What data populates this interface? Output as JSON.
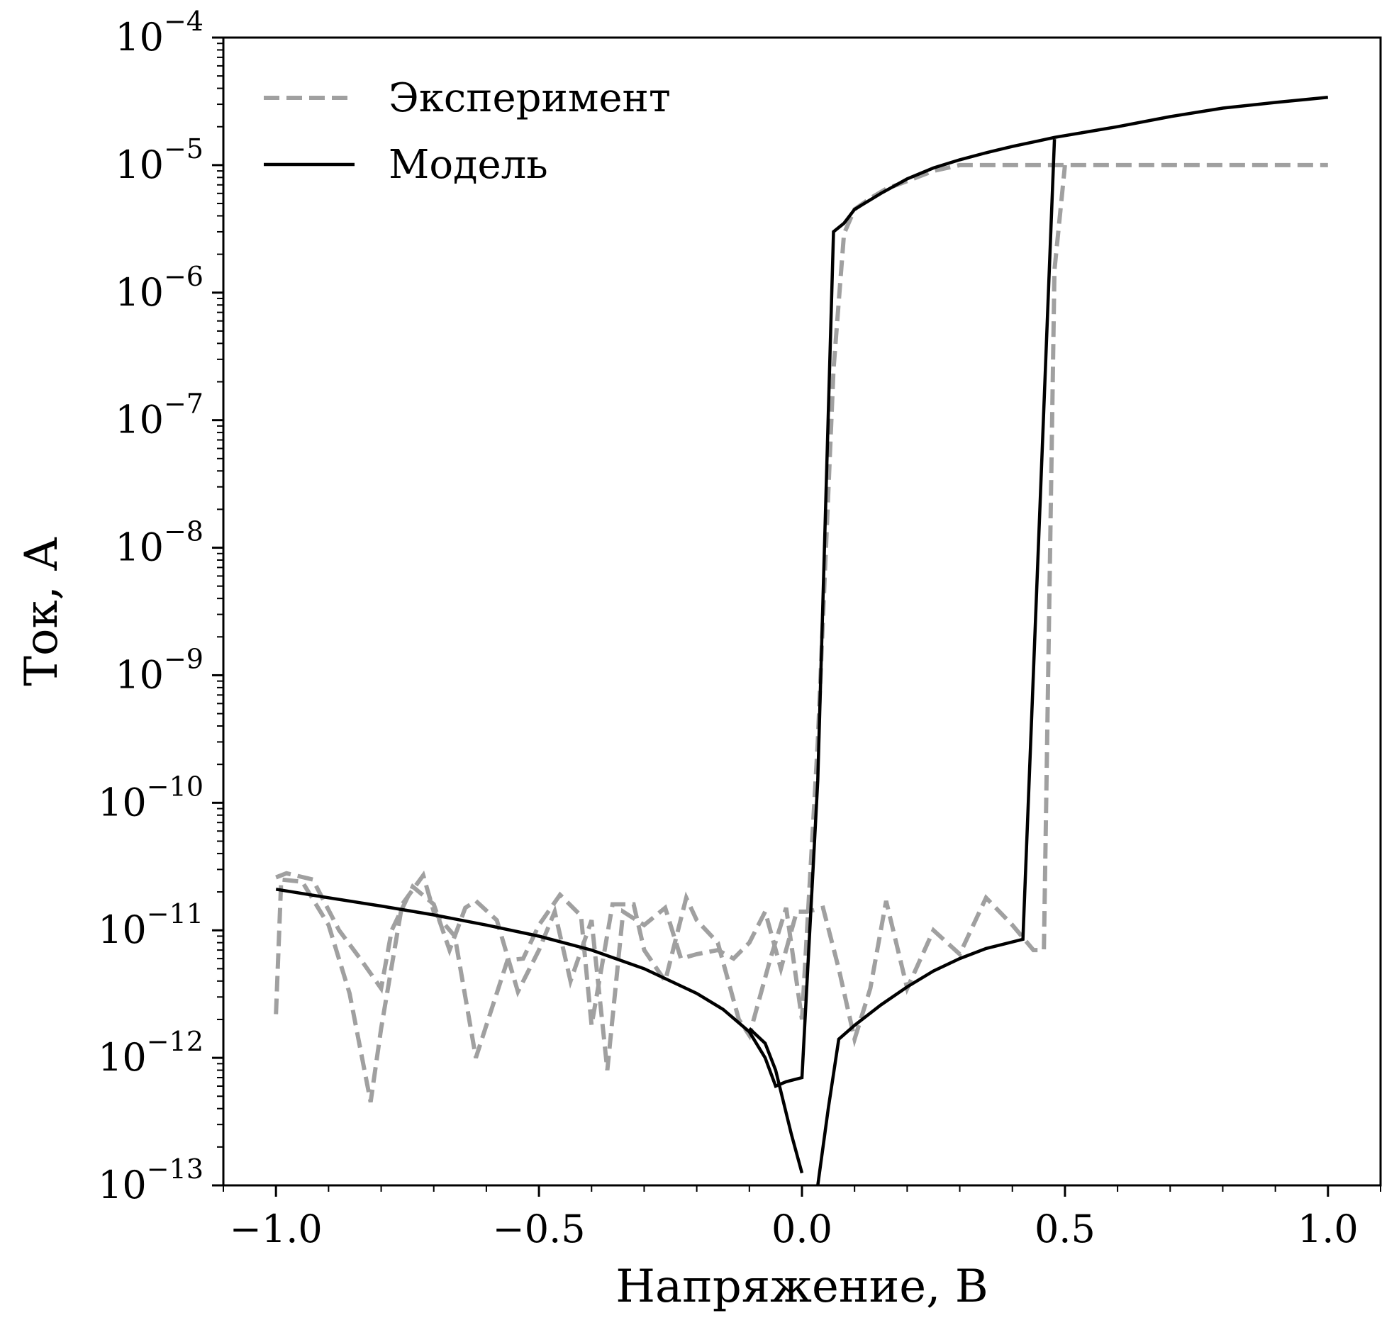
{
  "chart_data": {
    "type": "line",
    "xlabel": "Напряжение, В",
    "ylabel": "Ток, А",
    "xlim": [
      -1.1,
      1.1
    ],
    "ylim": [
      1e-13,
      0.0001
    ],
    "yscale": "log",
    "grid": false,
    "legend_position": "top-left",
    "x_ticks": [
      -1.0,
      -0.5,
      0.0,
      0.5,
      1.0
    ],
    "x_tick_labels": [
      "−1.0",
      "−0.5",
      "0.0",
      "0.5",
      "1.0"
    ],
    "y_ticks": [
      {
        "value": 1e-13,
        "base": "10",
        "exp": "−13"
      },
      {
        "value": 1e-12,
        "base": "10",
        "exp": "−12"
      },
      {
        "value": 1e-11,
        "base": "10",
        "exp": "−11"
      },
      {
        "value": 1e-10,
        "base": "10",
        "exp": "−10"
      },
      {
        "value": 1e-09,
        "base": "10",
        "exp": "−9"
      },
      {
        "value": 1e-08,
        "base": "10",
        "exp": "−8"
      },
      {
        "value": 1e-07,
        "base": "10",
        "exp": "−7"
      },
      {
        "value": 1e-06,
        "base": "10",
        "exp": "−6"
      },
      {
        "value": 1e-05,
        "base": "10",
        "exp": "−5"
      },
      {
        "value": 0.0001,
        "base": "10",
        "exp": "−4"
      }
    ],
    "series": [
      {
        "name": "Эксперимент",
        "color": "#a0a0a0",
        "style": "dashed",
        "segments": [
          {
            "x": [
              -1.0,
              -0.99,
              -0.95,
              -0.9,
              -0.86,
              -0.82,
              -0.8,
              -0.76,
              -0.72,
              -0.7,
              -0.66,
              -0.62,
              -0.6,
              -0.56,
              -0.53,
              -0.5,
              -0.46,
              -0.42,
              -0.4,
              -0.36,
              -0.32,
              -0.3,
              -0.26,
              -0.22,
              -0.2,
              -0.16,
              -0.12,
              -0.1,
              -0.06,
              -0.03,
              0.0,
              0.03,
              0.06,
              0.08,
              0.1,
              0.13,
              0.16,
              0.2,
              0.25,
              0.3,
              0.35,
              0.4,
              0.45,
              0.5,
              1.0
            ],
            "y": [
              2.2e-12,
              2.5e-11,
              2.4e-11,
              1.1e-11,
              3.2e-12,
              4.5e-13,
              1.7e-12,
              1.6e-11,
              2.7e-11,
              1.4e-11,
              9e-12,
              1e-12,
              1.8e-12,
              5.8e-12,
              6e-12,
              1.1e-11,
              1.9e-11,
              1.3e-11,
              1.8e-12,
              1.6e-11,
              1.6e-11,
              7e-12,
              4e-12,
              1.8e-11,
              1.2e-11,
              8e-12,
              2e-12,
              1.5e-12,
              6e-12,
              1.5e-11,
              2e-12,
              3e-10,
              2.5e-07,
              2.9e-06,
              4.5e-06,
              5.5e-06,
              6.5e-06,
              7.5e-06,
              9e-06,
              1e-05,
              1e-05,
              1e-05,
              1e-05,
              1e-05,
              1e-05
            ]
          },
          {
            "x": [
              -1.0,
              -0.98,
              -0.93,
              -0.88,
              -0.84,
              -0.8,
              -0.78,
              -0.74,
              -0.7,
              -0.67,
              -0.64,
              -0.62,
              -0.58,
              -0.54,
              -0.5,
              -0.47,
              -0.44,
              -0.4,
              -0.37,
              -0.34,
              -0.3,
              -0.26,
              -0.23,
              -0.2,
              -0.16,
              -0.13,
              -0.1,
              -0.07,
              -0.04,
              -0.01,
              0.01,
              0.04,
              0.07,
              0.1,
              0.13,
              0.16,
              0.2,
              0.25,
              0.3,
              0.35,
              0.4,
              0.44,
              0.46,
              0.48,
              0.5
            ],
            "y": [
              2.6e-11,
              2.8e-11,
              2.5e-11,
              1e-11,
              6e-12,
              3.5e-12,
              1e-11,
              2.2e-11,
              1.6e-11,
              7e-12,
              1.5e-11,
              1.7e-11,
              1.2e-11,
              3.3e-12,
              7e-12,
              1.4e-11,
              4e-12,
              1.2e-11,
              8e-13,
              1.4e-11,
              1.1e-11,
              1.5e-11,
              6e-12,
              6.5e-12,
              7e-12,
              6e-12,
              8e-12,
              1.4e-11,
              5e-12,
              1.4e-11,
              1.4e-11,
              1.5e-11,
              5e-12,
              1.4e-12,
              3.5e-12,
              1.7e-11,
              3.5e-12,
              1e-11,
              6.5e-12,
              1.8e-11,
              1.1e-11,
              7e-12,
              7e-12,
              1.5e-06,
              1e-05
            ]
          }
        ]
      },
      {
        "name": "Модель",
        "color": "#000000",
        "style": "solid",
        "segments": [
          {
            "x": [
              -1.0,
              -0.9,
              -0.8,
              -0.7,
              -0.6,
              -0.5,
              -0.4,
              -0.3,
              -0.2,
              -0.15,
              -0.1,
              -0.07,
              -0.05,
              -0.03,
              0.0,
              0.03,
              0.06,
              0.08,
              0.1,
              0.15,
              0.2,
              0.25,
              0.3,
              0.35,
              0.4,
              0.45,
              0.48,
              0.6,
              0.7,
              0.8,
              0.9,
              1.0
            ],
            "y": [
              2.1e-11,
              1.8e-11,
              1.55e-11,
              1.32e-11,
              1.1e-11,
              9e-12,
              7e-12,
              5e-12,
              3.2e-12,
              2.4e-12,
              1.6e-12,
              1e-12,
              6e-13,
              6.5e-13,
              7e-13,
              1.5e-10,
              3e-06,
              3.5e-06,
              4.5e-06,
              6e-06,
              7.8e-06,
              9.5e-06,
              1.1e-05,
              1.25e-05,
              1.4e-05,
              1.55e-05,
              1.65e-05,
              2e-05,
              2.4e-05,
              2.8e-05,
              3.1e-05,
              3.4e-05
            ]
          },
          {
            "x": [
              -0.1,
              -0.07,
              -0.05,
              -0.02,
              0.0
            ],
            "y": [
              1.7e-12,
              1.3e-12,
              8e-13,
              2.5e-13,
              1.25e-13
            ]
          },
          {
            "x": [
              0.03,
              0.05,
              0.07,
              0.1,
              0.15,
              0.2,
              0.25,
              0.3,
              0.35,
              0.42,
              0.48
            ],
            "y": [
              1e-13,
              4e-13,
              1.4e-12,
              1.8e-12,
              2.6e-12,
              3.6e-12,
              4.8e-12,
              6e-12,
              7.2e-12,
              8.5e-12,
              1.6e-05
            ]
          }
        ]
      }
    ]
  }
}
